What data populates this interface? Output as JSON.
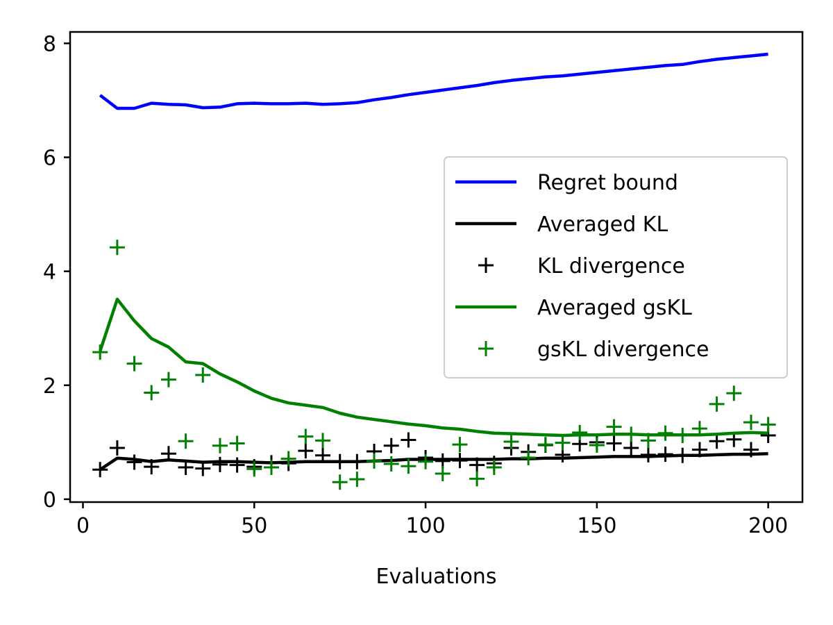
{
  "chart_data": {
    "type": "line",
    "title": "",
    "xlabel": "Evaluations",
    "ylabel": "",
    "xlim": [
      -3.75,
      210
    ],
    "ylim": [
      -0.05,
      8.2
    ],
    "xticks": [
      0,
      50,
      100,
      150,
      200
    ],
    "yticks": [
      0,
      2,
      4,
      6,
      8
    ],
    "grid": false,
    "legend_position": "center-right",
    "x": [
      5,
      10,
      15,
      20,
      25,
      30,
      35,
      40,
      45,
      50,
      55,
      60,
      65,
      70,
      75,
      80,
      85,
      90,
      95,
      100,
      105,
      110,
      115,
      120,
      125,
      130,
      135,
      140,
      145,
      150,
      155,
      160,
      165,
      170,
      175,
      180,
      185,
      190,
      195,
      200
    ],
    "series": [
      {
        "name": "Regret bound",
        "kind": "line",
        "color": "#0000ff",
        "values": [
          7.09,
          6.86,
          6.86,
          6.95,
          6.93,
          6.92,
          6.87,
          6.88,
          6.94,
          6.95,
          6.94,
          6.94,
          6.95,
          6.93,
          6.94,
          6.96,
          7.01,
          7.05,
          7.1,
          7.14,
          7.18,
          7.22,
          7.26,
          7.31,
          7.35,
          7.38,
          7.41,
          7.43,
          7.46,
          7.49,
          7.52,
          7.55,
          7.58,
          7.61,
          7.63,
          7.68,
          7.72,
          7.75,
          7.78,
          7.81
        ]
      },
      {
        "name": "Averaged KL",
        "kind": "line",
        "color": "#000000",
        "values": [
          0.52,
          0.72,
          0.7,
          0.66,
          0.69,
          0.67,
          0.65,
          0.66,
          0.66,
          0.65,
          0.64,
          0.65,
          0.66,
          0.66,
          0.66,
          0.66,
          0.67,
          0.68,
          0.7,
          0.7,
          0.7,
          0.7,
          0.7,
          0.7,
          0.71,
          0.71,
          0.72,
          0.72,
          0.73,
          0.74,
          0.75,
          0.75,
          0.75,
          0.76,
          0.77,
          0.77,
          0.78,
          0.79,
          0.79,
          0.8
        ]
      },
      {
        "name": "KL divergence",
        "kind": "scatter",
        "marker": "+",
        "color": "#000000",
        "values": [
          0.52,
          0.9,
          0.65,
          0.57,
          0.8,
          0.56,
          0.54,
          0.61,
          0.6,
          0.57,
          0.64,
          0.63,
          0.85,
          0.77,
          0.66,
          0.66,
          0.84,
          0.94,
          1.04,
          0.73,
          0.67,
          0.68,
          0.6,
          0.63,
          0.9,
          0.83,
          0.95,
          0.78,
          0.97,
          1.0,
          0.98,
          0.9,
          0.78,
          0.79,
          0.77,
          0.87,
          1.02,
          1.05,
          0.87,
          1.12
        ]
      },
      {
        "name": "Averaged gsKL",
        "kind": "line",
        "color": "#008000",
        "values": [
          2.6,
          3.51,
          3.13,
          2.82,
          2.67,
          2.41,
          2.38,
          2.2,
          2.06,
          1.9,
          1.77,
          1.69,
          1.65,
          1.61,
          1.51,
          1.44,
          1.4,
          1.36,
          1.32,
          1.29,
          1.25,
          1.23,
          1.19,
          1.16,
          1.15,
          1.14,
          1.13,
          1.12,
          1.13,
          1.13,
          1.14,
          1.14,
          1.13,
          1.13,
          1.13,
          1.13,
          1.14,
          1.16,
          1.17,
          1.16
        ]
      },
      {
        "name": "gsKL divergence",
        "kind": "scatter",
        "marker": "+",
        "color": "#008000",
        "values": [
          2.58,
          4.42,
          2.38,
          1.87,
          2.1,
          1.02,
          2.18,
          0.94,
          0.98,
          0.53,
          0.56,
          0.71,
          1.1,
          1.03,
          0.3,
          0.35,
          0.67,
          0.62,
          0.58,
          0.66,
          0.45,
          0.96,
          0.36,
          0.56,
          1.01,
          0.73,
          0.96,
          0.99,
          1.17,
          0.95,
          1.27,
          1.14,
          1.03,
          1.16,
          1.12,
          1.24,
          1.67,
          1.86,
          1.35,
          1.31
        ]
      }
    ]
  }
}
